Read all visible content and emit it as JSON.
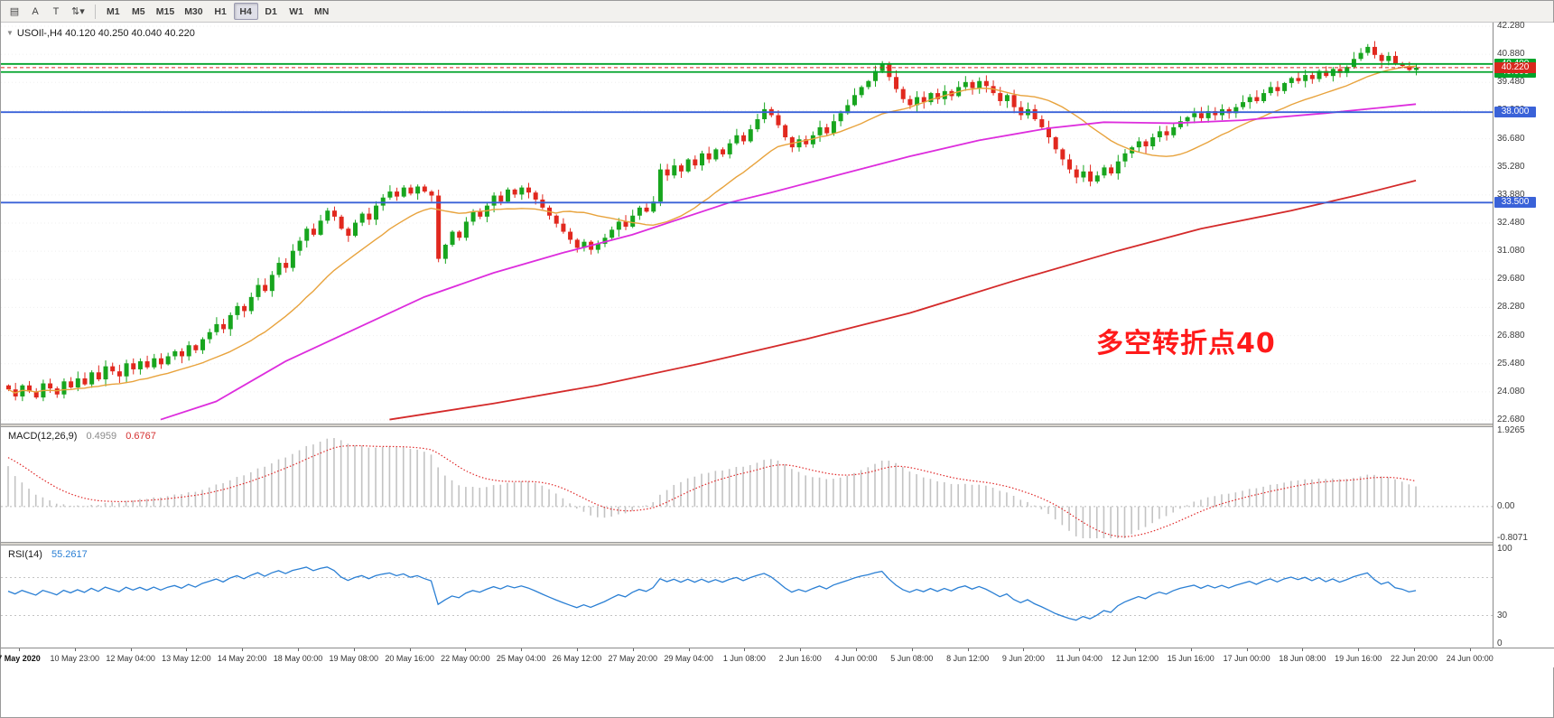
{
  "toolbar": {
    "tools": [
      {
        "name": "chart-window",
        "glyph": "▤"
      },
      {
        "name": "text-label",
        "glyph": "A"
      },
      {
        "name": "text-tool",
        "glyph": "T"
      },
      {
        "name": "objects-dropdown",
        "glyph": "⇅▾"
      }
    ],
    "timeframes": [
      "M1",
      "M5",
      "M15",
      "M30",
      "H1",
      "H4",
      "D1",
      "W1",
      "MN"
    ],
    "active_timeframe": "H4"
  },
  "colors": {
    "up": "#17a51e",
    "down": "#e1281e",
    "macd_hist": "#c3c3c3",
    "macd_signal": "#e02828",
    "rsi": "#2a7fd4",
    "annotation": "#ff1a1a"
  },
  "chart_data": [
    {
      "type": "candlestick",
      "symbol": "USOIl-",
      "timeframe": "H4",
      "ohlc_display": {
        "open": "40.120",
        "high": "40.250",
        "low": "40.040",
        "close": "40.220"
      },
      "annotation": {
        "text": "多空转折点40"
      },
      "y_axis": {
        "max": 42.28,
        "min": 22.68,
        "labels": [
          42.28,
          40.88,
          39.48,
          38.08,
          36.68,
          35.28,
          33.88,
          32.48,
          31.08,
          29.68,
          28.28,
          26.88,
          25.48,
          24.08,
          22.68
        ]
      },
      "x_axis": {
        "tick_labels": [
          "7 May 2020",
          "10 May 23:00",
          "12 May 04:00",
          "13 May 12:00",
          "14 May 20:00",
          "18 May 00:00",
          "19 May 08:00",
          "20 May 16:00",
          "22 May 00:00",
          "25 May 04:00",
          "26 May 12:00",
          "27 May 20:00",
          "29 May 04:00",
          "1 Jun 08:00",
          "2 Jun 16:00",
          "4 Jun 00:00",
          "5 Jun 08:00",
          "8 Jun 12:00",
          "9 Jun 20:00",
          "11 Jun 04:00",
          "12 Jun 12:00",
          "15 Jun 16:00",
          "17 Jun 00:00",
          "18 Jun 08:00",
          "19 Jun 16:00",
          "22 Jun 20:00",
          "24 Jun 00:00"
        ]
      },
      "open_first": 24.4,
      "closes": [
        24.2,
        23.85,
        24.4,
        24.1,
        23.8,
        24.5,
        24.25,
        23.95,
        24.6,
        24.3,
        24.75,
        24.45,
        25.05,
        24.7,
        25.35,
        25.1,
        24.85,
        25.5,
        25.2,
        25.6,
        25.3,
        25.75,
        25.45,
        25.85,
        26.1,
        25.85,
        26.4,
        26.15,
        26.7,
        27.05,
        27.45,
        27.2,
        27.9,
        28.35,
        28.1,
        28.8,
        29.4,
        29.1,
        29.9,
        30.5,
        30.25,
        31.1,
        31.6,
        32.2,
        31.9,
        32.6,
        33.1,
        32.8,
        32.2,
        31.85,
        32.5,
        32.95,
        32.65,
        33.35,
        33.75,
        34.05,
        33.8,
        34.25,
        33.95,
        34.3,
        34.05,
        33.85,
        30.7,
        31.4,
        32.05,
        31.75,
        32.55,
        33.05,
        32.8,
        33.35,
        33.85,
        33.55,
        34.15,
        33.9,
        34.25,
        34.0,
        33.65,
        33.25,
        32.85,
        32.45,
        32.05,
        31.65,
        31.25,
        31.55,
        31.15,
        31.45,
        31.75,
        32.15,
        32.55,
        32.3,
        32.85,
        33.25,
        33.05,
        33.55,
        35.15,
        34.85,
        35.35,
        35.05,
        35.65,
        35.35,
        35.95,
        35.65,
        36.15,
        35.9,
        36.45,
        36.85,
        36.55,
        37.15,
        37.65,
        38.15,
        37.85,
        37.35,
        36.75,
        36.25,
        36.65,
        36.4,
        36.85,
        37.25,
        36.95,
        37.55,
        37.95,
        38.35,
        38.85,
        39.25,
        39.55,
        40.05,
        40.4,
        39.75,
        39.15,
        38.65,
        38.35,
        38.75,
        38.5,
        38.95,
        38.65,
        39.05,
        38.8,
        39.25,
        39.5,
        39.2,
        39.55,
        39.3,
        38.95,
        38.55,
        38.85,
        38.25,
        37.85,
        38.15,
        37.65,
        37.25,
        36.75,
        36.15,
        35.65,
        35.15,
        34.75,
        35.05,
        34.55,
        34.85,
        35.25,
        34.95,
        35.55,
        35.95,
        36.25,
        36.55,
        36.3,
        36.75,
        37.05,
        36.85,
        37.25,
        37.55,
        37.75,
        37.95,
        37.7,
        38.05,
        37.85,
        38.15,
        37.95,
        38.25,
        38.5,
        38.75,
        38.55,
        38.95,
        39.25,
        39.05,
        39.45,
        39.7,
        39.55,
        39.85,
        39.65,
        40.05,
        39.8,
        40.15,
        39.95,
        40.25,
        40.65,
        40.95,
        41.25,
        40.85,
        40.55,
        40.8,
        40.4,
        40.3,
        40.1,
        40.22
      ],
      "ma_fast": {
        "period": 18,
        "color": "#e8a33d"
      },
      "ma_mid": {
        "color": "#dd2ddd",
        "points": [
          [
            22,
            22.7
          ],
          [
            30,
            23.6
          ],
          [
            40,
            25.6
          ],
          [
            50,
            27.2
          ],
          [
            60,
            28.8
          ],
          [
            70,
            30.0
          ],
          [
            80,
            31.0
          ],
          [
            90,
            31.9
          ],
          [
            104,
            33.5
          ],
          [
            110,
            34.0
          ],
          [
            120,
            34.9
          ],
          [
            130,
            35.8
          ],
          [
            140,
            36.6
          ],
          [
            150,
            37.2
          ],
          [
            158,
            37.5
          ],
          [
            168,
            37.45
          ],
          [
            178,
            37.6
          ],
          [
            190,
            37.95
          ],
          [
            203,
            38.4
          ]
        ]
      },
      "ma_slow": {
        "color": "#d42a2a",
        "points": [
          [
            55,
            22.7
          ],
          [
            70,
            23.5
          ],
          [
            85,
            24.4
          ],
          [
            100,
            25.5
          ],
          [
            115,
            26.7
          ],
          [
            130,
            28.0
          ],
          [
            145,
            29.6
          ],
          [
            160,
            31.1
          ],
          [
            172,
            32.2
          ],
          [
            185,
            33.1
          ],
          [
            195,
            33.9
          ],
          [
            203,
            34.6
          ]
        ]
      },
      "hlines": [
        {
          "price": 40.4,
          "color": "#00a32a",
          "label": "40.400"
        },
        {
          "price": 40.0,
          "color": "#00a32a",
          "label": "40.000"
        },
        {
          "price": 38.0,
          "color": "#3a62d8",
          "label": "38.000"
        },
        {
          "price": 33.5,
          "color": "#3a62d8",
          "label": "33.500"
        }
      ],
      "current_price": {
        "value": 40.22,
        "label": "40.220",
        "color": "#d8281e"
      }
    },
    {
      "type": "macd",
      "label": "MACD(12,26,9)",
      "values": {
        "macd": "0.4959",
        "signal": "0.6767"
      },
      "scale": {
        "max": 1.9265,
        "min": -0.8071,
        "labels": [
          "1.9265",
          "0.00",
          "-0.8071"
        ]
      },
      "derive": {
        "fast": 12,
        "slow": 26,
        "signal": 9,
        "seed_fast": 26.4,
        "seed_slow": 25.1,
        "seed_signal": 1.3
      }
    },
    {
      "type": "rsi",
      "label": "RSI(14)",
      "value": "55.2617",
      "scale": {
        "max": 100,
        "min": 0,
        "levels": [
          70,
          30
        ],
        "labels": [
          {
            "v": 100,
            "t": "100"
          },
          {
            "v": 30,
            "t": "30"
          },
          {
            "v": 0,
            "t": "0"
          }
        ]
      },
      "derive": {
        "period": 14,
        "seed_gain": 0.3,
        "seed_loss": 0.24
      }
    }
  ]
}
